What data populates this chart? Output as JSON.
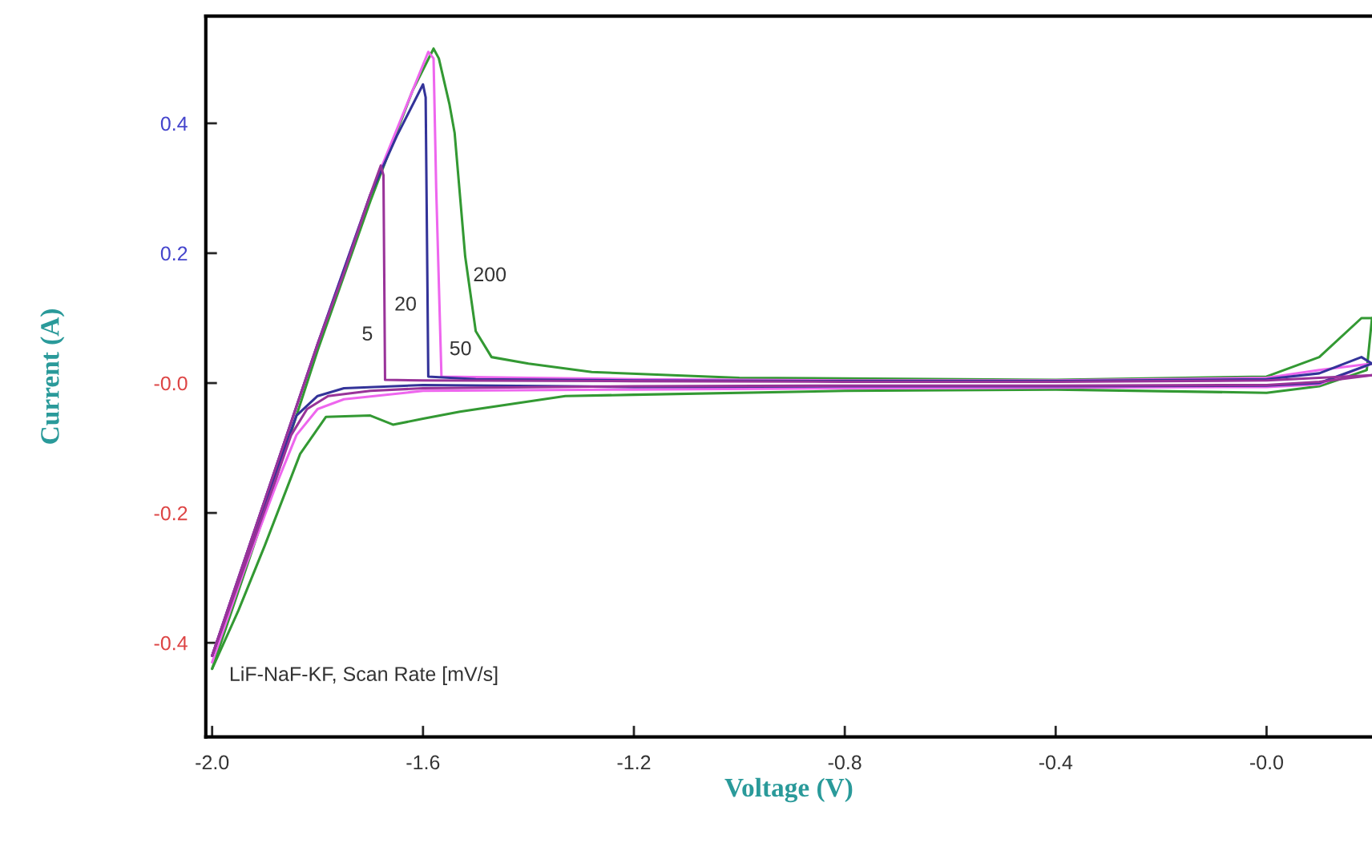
{
  "chart_data": {
    "type": "line",
    "xlabel": "Voltage (V)",
    "ylabel": "Current (A)",
    "xlim": [
      -2.012,
      0.2
    ],
    "ylim": [
      -0.545,
      0.565
    ],
    "xticks": [
      {
        "value": -2,
        "label": "-2.0"
      },
      -1.6,
      -1.2,
      -0.8,
      -0.4,
      {
        "value": 0,
        "label": "-0.0"
      }
    ],
    "yticks": [
      -0.4,
      -0.2,
      {
        "value": 0,
        "label": "-0.0"
      },
      0.2,
      0.4
    ],
    "grid": false,
    "legend": false,
    "marker": "none",
    "line_style": "solid",
    "series": [
      {
        "name": "5",
        "color": "#993399",
        "x": [
          -2.0,
          -1.95,
          -1.9,
          -1.85,
          -1.8,
          -1.75,
          -1.7,
          -1.68,
          -1.675,
          -1.672,
          -1.6,
          -1.2,
          -0.8,
          -0.4,
          0.0,
          0.1,
          0.2
        ],
        "values": [
          -0.42,
          -0.3,
          -0.18,
          -0.06,
          0.06,
          0.17,
          0.29,
          0.335,
          0.32,
          0.005,
          0.004,
          0.003,
          0.002,
          0.002,
          0.004,
          0.008,
          0.012
        ]
      },
      {
        "color": "#993399",
        "x": [
          0.2,
          0.1,
          0.0,
          -0.4,
          -0.8,
          -1.2,
          -1.6,
          -1.7,
          -1.78,
          -1.82,
          -1.85,
          -1.88,
          -1.92,
          -1.96,
          -2.0
        ],
        "values": [
          0.012,
          0.002,
          -0.003,
          -0.004,
          -0.004,
          -0.005,
          -0.008,
          -0.012,
          -0.02,
          -0.04,
          -0.08,
          -0.15,
          -0.24,
          -0.33,
          -0.42
        ]
      },
      {
        "name": "20",
        "color": "#333399",
        "x": [
          -2.0,
          -1.9,
          -1.8,
          -1.7,
          -1.65,
          -1.6,
          -1.595,
          -1.59,
          -1.5,
          -1.2,
          -0.8,
          -0.4,
          0.0,
          0.1,
          0.18,
          0.2
        ],
        "values": [
          -0.42,
          -0.18,
          0.06,
          0.29,
          0.38,
          0.46,
          0.44,
          0.01,
          0.006,
          0.004,
          0.003,
          0.003,
          0.006,
          0.015,
          0.04,
          0.03
        ]
      },
      {
        "color": "#333399",
        "x": [
          0.2,
          0.1,
          0.0,
          -0.4,
          -0.8,
          -1.2,
          -1.6,
          -1.75,
          -1.8,
          -1.84,
          -1.88,
          -1.94,
          -2.0
        ],
        "values": [
          0.03,
          0.0,
          -0.004,
          -0.005,
          -0.005,
          -0.006,
          -0.003,
          -0.008,
          -0.02,
          -0.05,
          -0.14,
          -0.28,
          -0.42
        ]
      },
      {
        "name": "50",
        "color": "#ee66ee",
        "x": [
          -2.0,
          -1.9,
          -1.8,
          -1.7,
          -1.62,
          -1.59,
          -1.58,
          -1.575,
          -1.565,
          -1.4,
          -1.2,
          -0.8,
          -0.4,
          0.0,
          0.1,
          0.2
        ],
        "values": [
          -0.42,
          -0.18,
          0.06,
          0.29,
          0.45,
          0.51,
          0.5,
          0.3,
          0.01,
          0.008,
          0.006,
          0.004,
          0.004,
          0.008,
          0.02,
          0.03
        ]
      },
      {
        "color": "#ee66ee",
        "x": [
          0.2,
          0.1,
          0.0,
          -0.4,
          -0.8,
          -1.2,
          -1.6,
          -1.75,
          -1.8,
          -1.84,
          -1.88,
          -1.94,
          -2.0
        ],
        "values": [
          0.03,
          -0.002,
          -0.006,
          -0.007,
          -0.008,
          -0.01,
          -0.012,
          -0.025,
          -0.04,
          -0.08,
          -0.16,
          -0.29,
          -0.43
        ]
      },
      {
        "name": "200",
        "color": "#339933",
        "x": [
          -2.0,
          -1.9,
          -1.8,
          -1.7,
          -1.62,
          -1.58,
          -1.57,
          -1.55,
          -1.54,
          -1.52,
          -1.5,
          -1.47,
          -1.4,
          -1.28,
          -1.0,
          -0.4,
          0.0,
          0.1,
          0.18,
          0.2
        ],
        "values": [
          -0.44,
          -0.2,
          0.05,
          0.28,
          0.45,
          0.515,
          0.5,
          0.43,
          0.385,
          0.195,
          0.08,
          0.04,
          0.03,
          0.017,
          0.008,
          0.005,
          0.01,
          0.04,
          0.1,
          0.1
        ]
      },
      {
        "color": "#339933",
        "x": [
          0.2,
          0.19,
          0.1,
          0.0,
          -0.4,
          -0.8,
          -1.2,
          -1.33,
          -1.53,
          -1.6,
          -1.657,
          -1.7,
          -1.784,
          -1.833,
          -1.9,
          -1.95,
          -2.0
        ],
        "values": [
          0.1,
          0.02,
          -0.005,
          -0.015,
          -0.01,
          -0.012,
          -0.018,
          -0.02,
          -0.044,
          -0.055,
          -0.064,
          -0.05,
          -0.052,
          -0.109,
          -0.25,
          -0.35,
          -0.44
        ]
      }
    ],
    "annotations": [
      "LiF-NaF-KF, Scan Rate [mV/s]"
    ]
  }
}
